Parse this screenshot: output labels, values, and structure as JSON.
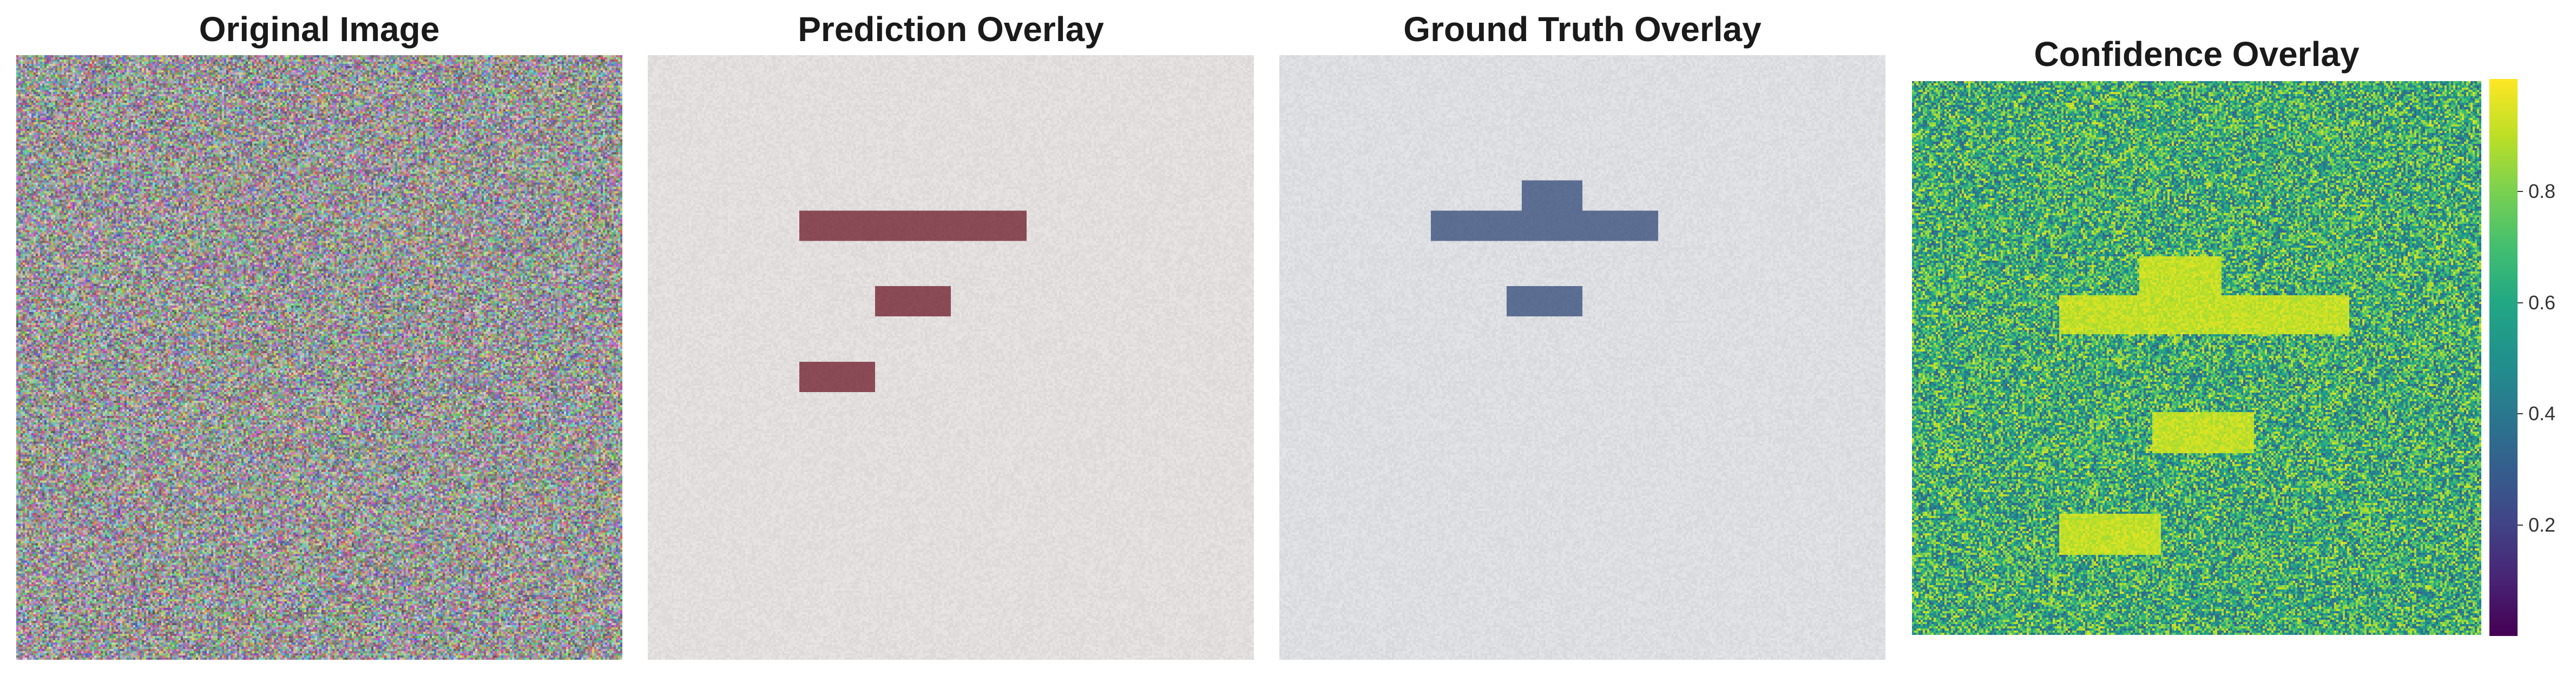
{
  "panels": {
    "original": {
      "title": "Original Image"
    },
    "prediction": {
      "title": "Prediction Overlay"
    },
    "ground_truth": {
      "title": "Ground Truth Overlay"
    },
    "confidence": {
      "title": "Confidence Overlay"
    }
  },
  "colorbar": {
    "colormap": "viridis",
    "range": [
      0.0,
      1.0
    ],
    "tick_labels": [
      "0.8",
      "0.6",
      "0.4",
      "0.2"
    ]
  },
  "colors": {
    "prediction_fill": "#8a4a55",
    "ground_truth_fill": "#5c6d92",
    "background": "#ffffff"
  }
}
